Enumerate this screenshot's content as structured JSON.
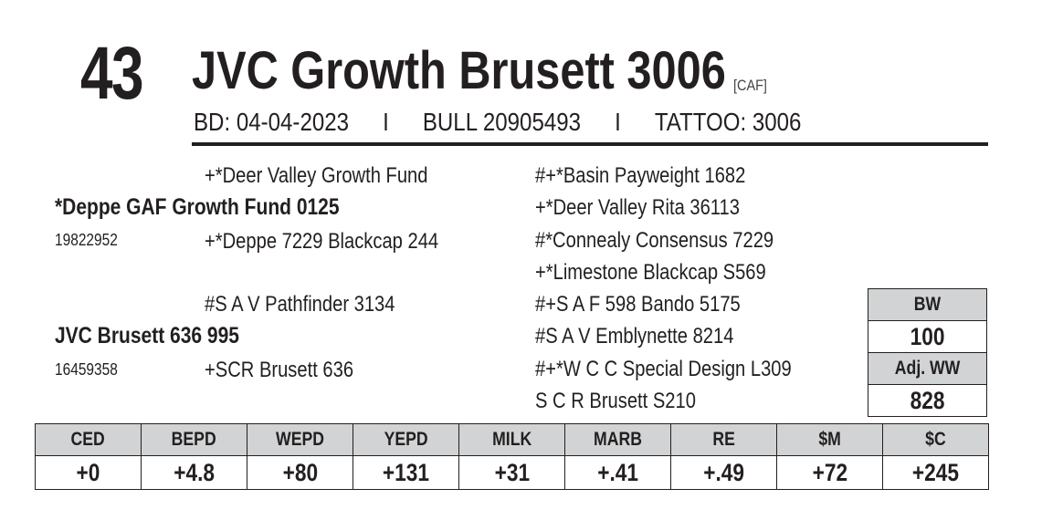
{
  "lot": {
    "number": "43"
  },
  "animal": {
    "name": "JVC Growth Brusett 3006",
    "breed_tag": "[CAF]",
    "birth_date": "BD: 04-04-2023",
    "separator": "I",
    "registration": "BULL 20905493",
    "tattoo": "TATTOO: 3006"
  },
  "pedigree": {
    "sire": {
      "name": "*Deppe GAF Growth Fund 0125",
      "reg": "19822952",
      "sire": "+*Deer Valley Growth Fund",
      "dam": "+*Deppe 7229 Blackcap 244",
      "sire_sire": "#+*Basin Payweight 1682",
      "sire_dam": "+*Deer Valley Rita 36113",
      "dam_sire": "#*Connealy Consensus 7229",
      "dam_dam": "+*Limestone Blackcap S569"
    },
    "dam": {
      "name": "JVC Brusett 636 995",
      "reg": "16459358",
      "sire": "#S A V Pathfinder 3134",
      "dam": "+SCR Brusett 636",
      "sire_sire": "#+S A F 598 Bando 5175",
      "sire_dam": "#S A V Emblynette 8214",
      "dam_sire": "#+*W C C Special Design L309",
      "dam_dam": "S C R Brusett S210"
    }
  },
  "weights": {
    "bw_label": "BW",
    "bw_value": "100",
    "ww_label": "Adj. WW",
    "ww_value": "828"
  },
  "epd": {
    "headers": [
      "CED",
      "BEPD",
      "WEPD",
      "YEPD",
      "MILK",
      "MARB",
      "RE",
      "$M",
      "$C"
    ],
    "values": [
      "+0",
      "+4.8",
      "+80",
      "+131",
      "+31",
      "+.41",
      "+.49",
      "+72",
      "+245"
    ]
  }
}
